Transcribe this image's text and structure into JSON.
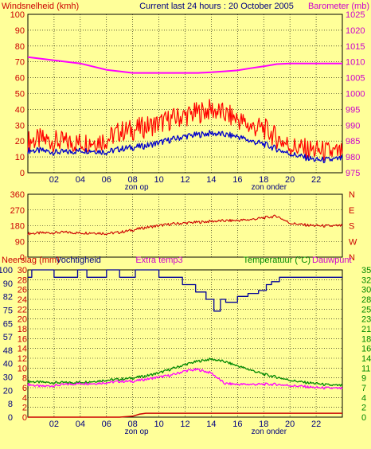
{
  "colors": {
    "background": "#ffff99",
    "wind_avg": "#0000cc",
    "wind_gust": "#ff0000",
    "barometer": "#ff00ff",
    "direction": "#cc0000",
    "humidity": "#000099",
    "temperature": "#008800",
    "dewpoint": "#ff00ff",
    "rain": "#cc0000",
    "grid": "#000000"
  },
  "chart_data": [
    {
      "type": "line",
      "title": "Current last 24 hours : 20 October 2005",
      "ylabel": "Windsnelheid (kmh)",
      "y2label": "Barometer (mb)",
      "ylim": [
        0,
        100
      ],
      "yticks": [
        "0",
        "10",
        "20",
        "30",
        "40",
        "50",
        "60",
        "70",
        "80",
        "90",
        "100"
      ],
      "y2lim": [
        975,
        1025
      ],
      "y2ticks": [
        "975",
        "980",
        "985",
        "990",
        "995",
        "1000",
        "1005",
        "1010",
        "1015",
        "1020",
        "1025"
      ],
      "xlim": [
        0,
        24
      ],
      "xticks": [
        "02",
        "04",
        "06",
        "08",
        "10",
        "12",
        "14",
        "16",
        "18",
        "20",
        "22"
      ],
      "sun_labels": [
        {
          "x": 8.3,
          "label": "zon op"
        },
        {
          "x": 18.4,
          "label": "zon onder"
        }
      ],
      "grid": true,
      "series": [
        {
          "name": "Windsnelheid",
          "axis": "left",
          "x": [
            0,
            1,
            2,
            3,
            4,
            5,
            6,
            7,
            8,
            9,
            10,
            11,
            12,
            13,
            14,
            15,
            16,
            17,
            18,
            19,
            20,
            21,
            22,
            23,
            24
          ],
          "values": [
            20,
            21,
            20,
            19,
            19,
            20,
            21,
            26,
            27,
            29,
            31,
            34,
            36,
            38,
            40,
            37,
            34,
            29,
            28,
            22,
            17,
            15,
            14,
            13,
            12
          ]
        },
        {
          "name": "Windsnelheid gemiddeld",
          "axis": "left",
          "x": [
            0,
            1,
            2,
            3,
            4,
            5,
            6,
            7,
            8,
            9,
            10,
            11,
            12,
            13,
            14,
            15,
            16,
            17,
            18,
            19,
            20,
            21,
            22,
            23,
            24
          ],
          "values": [
            14,
            14,
            13,
            13,
            14,
            14,
            13,
            15,
            16,
            17,
            19,
            21,
            23,
            24,
            25,
            24,
            23,
            20,
            18,
            15,
            12,
            10,
            8,
            8,
            9
          ]
        },
        {
          "name": "Barometer",
          "axis": "right",
          "x": [
            0,
            1,
            2,
            3,
            4,
            5,
            6,
            7,
            8,
            9,
            10,
            11,
            12,
            13,
            14,
            15,
            16,
            17,
            18,
            19,
            20,
            21,
            22,
            23,
            24
          ],
          "values": [
            1011.5,
            1011,
            1010.5,
            1010,
            1009.5,
            1008.5,
            1007.5,
            1007,
            1006.5,
            1006.5,
            1006.5,
            1006.5,
            1006.5,
            1006.5,
            1006.7,
            1007,
            1007.3,
            1008,
            1008.6,
            1009.3,
            1009.5,
            1009.5,
            1009.5,
            1009.5,
            1009.5
          ]
        }
      ]
    },
    {
      "type": "line",
      "ylim": [
        0,
        360
      ],
      "yticks": [
        "0",
        "90",
        "180",
        "270",
        "360"
      ],
      "y2ticks": [
        "N",
        "W",
        "S",
        "E",
        "N"
      ],
      "xlim": [
        0,
        24
      ],
      "grid": true,
      "series": [
        {
          "name": "Windrichting",
          "x": [
            0,
            1,
            2,
            3,
            4,
            5,
            6,
            7,
            8,
            9,
            10,
            11,
            12,
            13,
            14,
            15,
            16,
            17,
            18,
            19,
            20,
            21,
            22,
            23,
            24
          ],
          "values": [
            135,
            138,
            140,
            142,
            138,
            140,
            135,
            142,
            155,
            170,
            180,
            190,
            195,
            200,
            205,
            208,
            210,
            215,
            225,
            235,
            195,
            185,
            180,
            178,
            180
          ]
        }
      ]
    },
    {
      "type": "line",
      "ylabel": "Neerslag (mm)",
      "ylabel2": "Vochtigheid",
      "center_label": "Extra temp3",
      "y2label": "Temperatuur (°C)",
      "y2label2": "Dauwpunt",
      "yticks_rain": [
        "0",
        "2",
        "4",
        "6",
        "8",
        "10",
        "12",
        "14",
        "16",
        "18",
        "20",
        "22",
        "24",
        "26",
        "28",
        "30"
      ],
      "yticks_hum": [
        "0",
        "8",
        "20",
        "30",
        "40",
        "48",
        "57",
        "65",
        "75",
        "82",
        "90",
        "100"
      ],
      "y2ticks": [
        "0",
        "2",
        "4",
        "7",
        "9",
        "11",
        "14",
        "16",
        "18",
        "21",
        "23",
        "25",
        "28",
        "30",
        "32",
        "35"
      ],
      "y2lim": [
        0,
        35
      ],
      "xlim": [
        0,
        24
      ],
      "xticks": [
        "02",
        "04",
        "06",
        "08",
        "10",
        "12",
        "14",
        "16",
        "18",
        "20",
        "22"
      ],
      "sun_labels": [
        {
          "x": 8.3,
          "label": "zon op"
        },
        {
          "x": 18.4,
          "label": "zon onder"
        }
      ],
      "grid": true,
      "series": [
        {
          "name": "Vochtigheid",
          "x": [
            0,
            0.3,
            0.3,
            2,
            2,
            3.8,
            3.8,
            4.5,
            4.5,
            6,
            6,
            7,
            7,
            8.2,
            8.2,
            10,
            10,
            11.8,
            11.8,
            12.8,
            12.8,
            13.6,
            13.6,
            14.2,
            14.2,
            14.7,
            14.7,
            15.1,
            15.1,
            16,
            16,
            16.8,
            16.8,
            17.6,
            17.6,
            18.2,
            18.2,
            18.6,
            18.6,
            19.2,
            19.2,
            24
          ],
          "values": [
            95,
            95,
            100,
            100,
            95,
            95,
            100,
            100,
            95,
            95,
            100,
            100,
            95,
            95,
            100,
            100,
            95,
            95,
            90,
            90,
            85,
            85,
            80,
            80,
            72,
            72,
            80,
            80,
            78,
            78,
            82,
            82,
            84,
            84,
            86,
            86,
            90,
            90,
            92,
            92,
            95,
            95
          ]
        },
        {
          "name": "Temperatuur",
          "x": [
            0,
            1,
            2,
            3,
            4,
            5,
            6,
            7,
            8,
            9,
            10,
            11,
            12,
            13,
            14,
            15,
            16,
            17,
            18,
            19,
            20,
            21,
            22,
            23,
            24
          ],
          "values": [
            8.5,
            8.3,
            8.2,
            8.2,
            8.3,
            8.5,
            8.8,
            9,
            9.3,
            9.8,
            10.5,
            11.5,
            12.5,
            13.3,
            13.8,
            13.2,
            12.2,
            11.2,
            10.2,
            9.5,
            8.8,
            8.3,
            8,
            7.6,
            7.5
          ]
        },
        {
          "name": "Dauwpunt",
          "x": [
            0,
            1,
            2,
            3,
            4,
            5,
            6,
            7,
            8,
            9,
            10,
            11,
            12,
            13,
            14,
            15,
            16,
            17,
            18,
            19,
            20,
            21,
            22,
            23,
            24
          ],
          "values": [
            7.8,
            7.3,
            7.5,
            7.8,
            8,
            8,
            8.2,
            8.5,
            8.5,
            9,
            9.5,
            10,
            11,
            11.3,
            10.5,
            8,
            7.8,
            7.8,
            7.8,
            7.8,
            7.5,
            7.3,
            7,
            6.9,
            6.8
          ]
        },
        {
          "name": "Neerslag",
          "x": [
            0,
            1,
            2,
            3,
            4,
            5,
            6,
            7,
            8,
            8.5,
            9,
            10,
            12,
            14,
            16,
            18,
            20,
            22,
            24
          ],
          "values": [
            0,
            0,
            0,
            0,
            0,
            0,
            0,
            0,
            0.2,
            0.6,
            0.8,
            0.8,
            0.8,
            0.8,
            0.8,
            0.8,
            0.8,
            0.8,
            0.8
          ]
        }
      ]
    }
  ]
}
